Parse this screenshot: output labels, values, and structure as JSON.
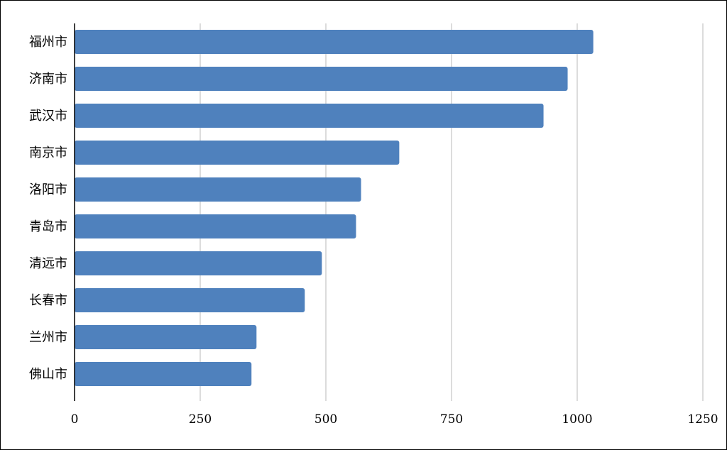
{
  "chart_data": {
    "type": "bar",
    "orientation": "horizontal",
    "title": "",
    "xlabel": "",
    "ylabel": "",
    "categories": [
      "福州市",
      "济南市",
      "武汉市",
      "南京市",
      "洛阳市",
      "青岛市",
      "清远市",
      "长春市",
      "兰州市",
      "佛山市"
    ],
    "values": [
      1032,
      981,
      933,
      646,
      570,
      560,
      492,
      458,
      362,
      352
    ],
    "xlim": [
      0,
      1250
    ],
    "xticks": [
      "0",
      "250",
      "500",
      "750",
      "1000",
      "1250"
    ],
    "grid": "vertical",
    "legend": "none",
    "colors": {
      "bar": "#4f81bd",
      "grid": "#d0d0d0",
      "axis": "#000000"
    }
  }
}
